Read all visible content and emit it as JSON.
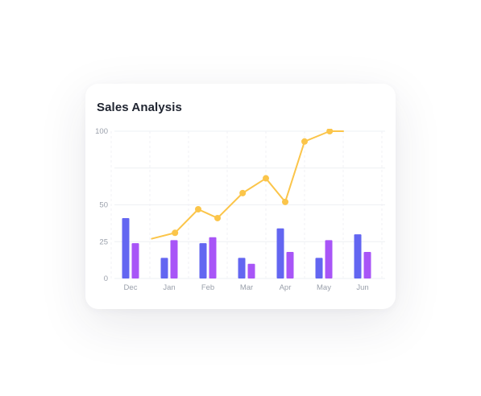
{
  "card": {
    "title": "Sales Analysis"
  },
  "chart_data": {
    "type": "bar",
    "title": "Sales Analysis",
    "categories": [
      "Dec",
      "Jan",
      "Feb",
      "Mar",
      "Apr",
      "May",
      "Jun"
    ],
    "ylim": [
      0,
      100
    ],
    "yticks": [
      0,
      25,
      50,
      100
    ],
    "grid": true,
    "legend": "none",
    "series": [
      {
        "type": "bar",
        "color": "#6366f1",
        "values": [
          41,
          14,
          24,
          14,
          34,
          14,
          30
        ]
      },
      {
        "type": "bar",
        "color": "#a855f7",
        "values": [
          24,
          26,
          28,
          10,
          18,
          26,
          18
        ]
      },
      {
        "type": "line",
        "color": "#fbc54a",
        "x": [
          0.55,
          1.15,
          1.75,
          2.25,
          2.9,
          3.5,
          4.0,
          4.5,
          5.15,
          5.5
        ],
        "values": [
          27,
          31,
          47,
          41,
          58,
          68,
          52,
          93,
          100,
          100
        ]
      }
    ]
  }
}
